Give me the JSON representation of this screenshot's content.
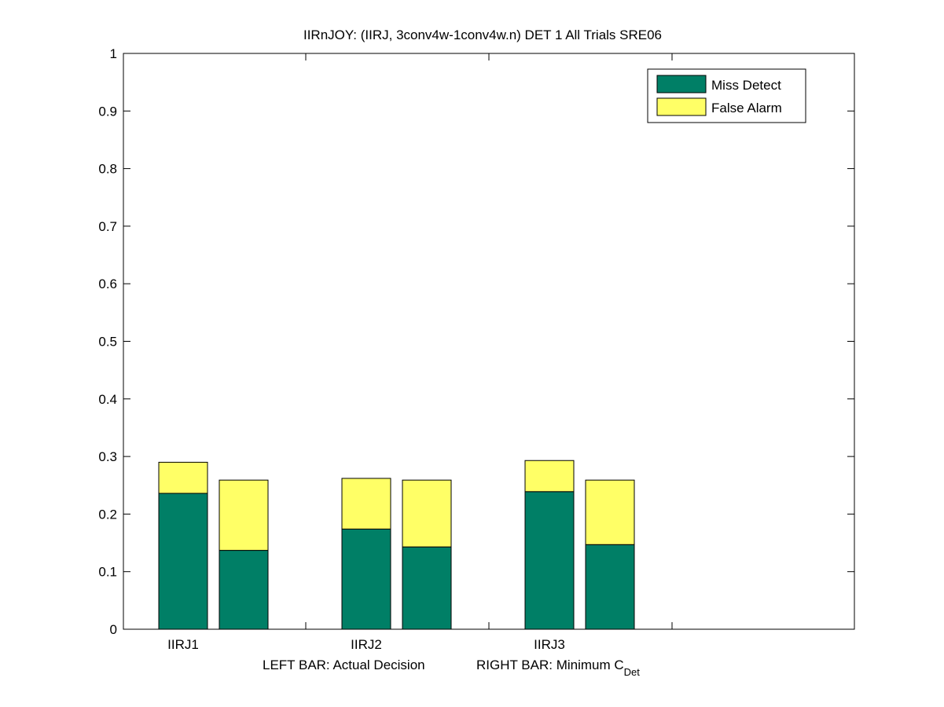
{
  "chart_data": {
    "type": "bar",
    "stacked": true,
    "title": "IIRnJOY: (IIRJ, 3conv4w-1conv4w.n) DET 1 All Trials SRE06",
    "xlabel": {
      "left": "LEFT BAR: Actual Decision",
      "right": "RIGHT BAR: Minimum C",
      "right_subscript": "Det"
    },
    "ylabel": "",
    "ylim": [
      0,
      1
    ],
    "yticks": [
      "0",
      "0.1",
      "0.2",
      "0.3",
      "0.4",
      "0.5",
      "0.6",
      "0.7",
      "0.8",
      "0.9",
      "1"
    ],
    "categories": [
      "IIRJ1",
      "IIRJ2",
      "IIRJ3"
    ],
    "bars_per_category": [
      "Actual Decision",
      "Minimum C_Det"
    ],
    "series": [
      {
        "name": "Miss Detect",
        "color": "#007f66",
        "values": [
          [
            0.236,
            0.137
          ],
          [
            0.174,
            0.143
          ],
          [
            0.239,
            0.147
          ]
        ]
      },
      {
        "name": "False Alarm",
        "color": "#ffff66",
        "values": [
          [
            0.054,
            0.122
          ],
          [
            0.088,
            0.116
          ],
          [
            0.054,
            0.112
          ]
        ]
      }
    ],
    "legend_position": "top-right",
    "grid": false
  }
}
